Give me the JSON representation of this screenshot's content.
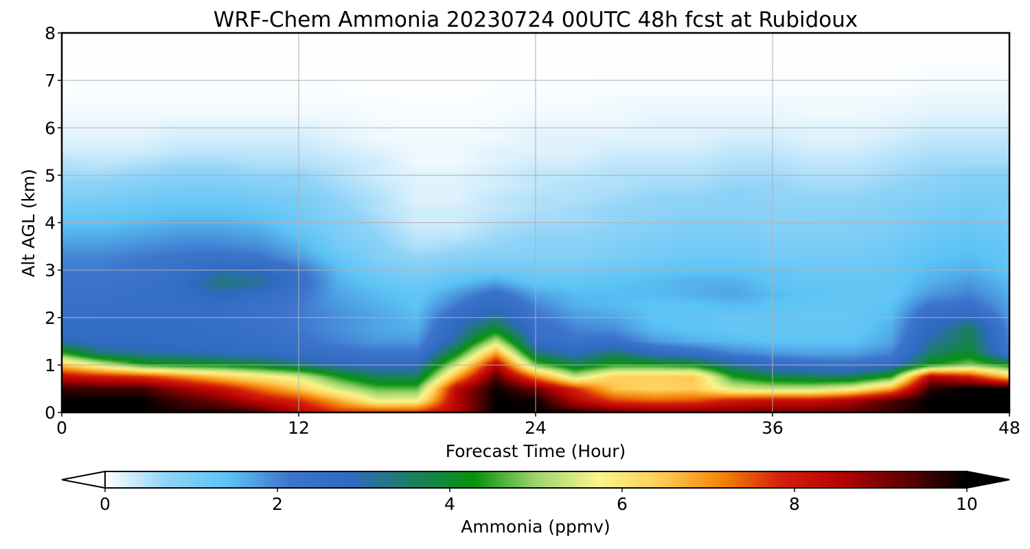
{
  "chart_data": {
    "type": "heatmap",
    "title": "WRF-Chem Ammonia  20230724 00UTC 48h fcst at Rubidoux",
    "xlabel": "Forecast Time (Hour)",
    "ylabel": "Alt AGL (km)",
    "xlim": [
      0,
      48
    ],
    "ylim": [
      0,
      8
    ],
    "x_ticks": [
      0,
      12,
      24,
      36,
      48
    ],
    "y_ticks": [
      0,
      1,
      2,
      3,
      4,
      5,
      6,
      7,
      8
    ],
    "grid": true,
    "colorbar": {
      "label": "Ammonia  (ppmv)",
      "range": [
        0,
        10
      ],
      "ticks": [
        0,
        2,
        4,
        6,
        8,
        10
      ],
      "extend": "both",
      "colors": [
        "#ffffff",
        "#8fd3f7",
        "#5bc3f5",
        "#3d74cc",
        "#2f6ac0",
        "#1b7f60",
        "#06930c",
        "#9fd46e",
        "#f9f58c",
        "#ffce57",
        "#f58508",
        "#d41e0a",
        "#b40202",
        "#5e0101",
        "#000000"
      ]
    },
    "grid_x": [
      0,
      2,
      4,
      6,
      8,
      10,
      12,
      14,
      16,
      18,
      20,
      22,
      24,
      26,
      28,
      30,
      32,
      34,
      36,
      38,
      40,
      42,
      44,
      46,
      48
    ],
    "grid_y": [
      0,
      0.25,
      0.5,
      0.75,
      1,
      1.25,
      1.5,
      1.75,
      2,
      2.25,
      2.5,
      2.75,
      3,
      3.25,
      3.5,
      3.75,
      4,
      4.25,
      4.5,
      4.75,
      5,
      5.25,
      5.5,
      5.75,
      6,
      6.25,
      6.5,
      6.75,
      7,
      7.25,
      7.5,
      7.75,
      8
    ],
    "values": [
      [
        10,
        10,
        10,
        9.8,
        9.8,
        9.5,
        8.5,
        7.8,
        7.8,
        7.8,
        8.5,
        10,
        10,
        9.7,
        9.3,
        9.1,
        9.1,
        9.1,
        9.2,
        9.2,
        9.3,
        9.6,
        10,
        10,
        10
      ],
      [
        10,
        10,
        10,
        9.5,
        9.1,
        8.3,
        7.8,
        6.8,
        5.6,
        5.7,
        8.5,
        10,
        9.9,
        8.5,
        7.6,
        7.4,
        7.5,
        8,
        8.2,
        8.2,
        8.6,
        9.4,
        10,
        10,
        10
      ],
      [
        9.6,
        9.5,
        9.5,
        8.8,
        8.2,
        7.3,
        6.5,
        5.4,
        4.7,
        4.7,
        8.4,
        9.9,
        9.2,
        7.8,
        6.5,
        6.3,
        6.4,
        5.5,
        5.3,
        5.3,
        5.7,
        6.8,
        9.7,
        10,
        10
      ],
      [
        8.3,
        8,
        7.8,
        7.2,
        6.5,
        6,
        5.5,
        4.4,
        3.6,
        3.6,
        6.8,
        9.4,
        7.2,
        5.3,
        6.4,
        6.4,
        6.5,
        4.4,
        3.8,
        3.6,
        3.6,
        4.4,
        8.6,
        8,
        6.5
      ],
      [
        6.5,
        5.5,
        4.5,
        4.2,
        4.2,
        3.9,
        3.4,
        2.9,
        2.7,
        2.8,
        5.4,
        8.5,
        4.8,
        3.8,
        4.4,
        4.4,
        4.2,
        3.2,
        2.6,
        2.4,
        2.3,
        2.6,
        4.3,
        4.9,
        4.2
      ],
      [
        4.5,
        3.3,
        3.1,
        3,
        2.8,
        2.7,
        2.5,
        2.3,
        2.2,
        2.2,
        4.1,
        6.9,
        3.4,
        2.8,
        3.5,
        2.7,
        2.4,
        2,
        1.8,
        1.7,
        1.7,
        2,
        3.5,
        4,
        2.2
      ],
      [
        2.9,
        2.7,
        2.7,
        2.6,
        2.6,
        2.5,
        2.2,
        2,
        1.8,
        1.8,
        3.2,
        5.3,
        2.6,
        2.2,
        2.3,
        1.8,
        1.6,
        1.5,
        1.4,
        1.4,
        1.4,
        1.7,
        3.1,
        3.7,
        2
      ],
      [
        2.6,
        2.6,
        2.6,
        2.6,
        2.5,
        2.3,
        2.1,
        1.9,
        1.7,
        1.6,
        2.9,
        4,
        2.4,
        2,
        1.9,
        1.5,
        1.4,
        1.3,
        1.3,
        1.3,
        1.3,
        1.6,
        2.8,
        3.6,
        1.9
      ],
      [
        2.5,
        2.5,
        2.5,
        2.5,
        2.5,
        2.3,
        2.1,
        1.9,
        1.7,
        1.5,
        2.6,
        3.2,
        2.2,
        1.8,
        1.7,
        1.4,
        1.4,
        1.3,
        1.3,
        1.3,
        1.3,
        1.5,
        2.6,
        2.9,
        1.8
      ],
      [
        2.4,
        2.4,
        2.5,
        2.5,
        2.6,
        2.3,
        2.1,
        1.8,
        1.6,
        1.4,
        2.1,
        2.8,
        2,
        1.6,
        1.5,
        1.4,
        1.4,
        1.5,
        1.4,
        1.3,
        1.3,
        1.4,
        2.2,
        2.3,
        1.7
      ],
      [
        2.3,
        2.3,
        2.4,
        2.6,
        2.9,
        2.6,
        2.2,
        1.7,
        1.5,
        1.3,
        1.8,
        2.3,
        1.7,
        1.5,
        1.5,
        1.5,
        1.6,
        1.7,
        1.5,
        1.4,
        1.3,
        1.3,
        1.8,
        2,
        1.6
      ],
      [
        2.2,
        2.2,
        2.3,
        2.5,
        3.4,
        3.2,
        2.4,
        1.6,
        1.3,
        1.1,
        1.4,
        1.7,
        1.3,
        1.3,
        1.4,
        1.5,
        1.6,
        1.6,
        1.4,
        1.3,
        1.3,
        1.3,
        1.6,
        1.8,
        1.5
      ],
      [
        2.1,
        2.1,
        2.2,
        2.4,
        2.9,
        2.8,
        2.2,
        1.5,
        1.1,
        0.9,
        1.1,
        1.2,
        1.1,
        1.1,
        1.2,
        1.3,
        1.4,
        1.4,
        1.3,
        1.2,
        1.2,
        1.3,
        1.5,
        1.6,
        1.4
      ],
      [
        2,
        2,
        2.1,
        2.2,
        2.3,
        2.2,
        1.8,
        1.3,
        0.9,
        0.7,
        0.8,
        0.9,
        0.9,
        0.9,
        1,
        1.1,
        1.2,
        1.2,
        1.1,
        1.1,
        1.1,
        1.2,
        1.4,
        1.5,
        1.3
      ],
      [
        1.8,
        1.8,
        1.9,
        2,
        2,
        1.9,
        1.6,
        1.1,
        0.8,
        0.5,
        0.6,
        0.7,
        0.8,
        0.8,
        0.9,
        1,
        1.1,
        1.1,
        1,
        1,
        1,
        1.1,
        1.3,
        1.4,
        1.3
      ],
      [
        1.6,
        1.6,
        1.7,
        1.8,
        1.8,
        1.7,
        1.4,
        1,
        0.7,
        0.4,
        0.4,
        0.6,
        0.7,
        0.7,
        0.8,
        0.9,
        1,
        1,
        0.9,
        0.9,
        0.9,
        1,
        1.2,
        1.3,
        1.2
      ],
      [
        1.4,
        1.4,
        1.5,
        1.6,
        1.6,
        1.5,
        1.2,
        0.9,
        0.6,
        0.3,
        0.3,
        0.5,
        0.6,
        0.6,
        0.7,
        0.8,
        0.9,
        0.9,
        0.8,
        0.8,
        0.9,
        0.9,
        1.1,
        1.2,
        1.1
      ],
      [
        1.2,
        1.2,
        1.3,
        1.4,
        1.4,
        1.3,
        1.1,
        0.8,
        0.5,
        0.3,
        0.3,
        0.4,
        0.5,
        0.6,
        0.7,
        0.7,
        0.8,
        0.8,
        0.8,
        0.8,
        0.8,
        0.9,
        1,
        1.1,
        1
      ],
      [
        1,
        1,
        1.1,
        1.2,
        1.2,
        1.1,
        1,
        0.7,
        0.5,
        0.2,
        0.2,
        0.4,
        0.5,
        0.5,
        0.6,
        0.7,
        0.7,
        0.8,
        0.7,
        0.7,
        0.7,
        0.8,
        0.9,
        1,
        1
      ],
      [
        0.8,
        0.8,
        0.9,
        1,
        1,
        0.9,
        0.8,
        0.6,
        0.4,
        0.2,
        0.2,
        0.3,
        0.4,
        0.5,
        0.5,
        0.6,
        0.6,
        0.7,
        0.7,
        0.6,
        0.6,
        0.7,
        0.8,
        0.9,
        0.9
      ],
      [
        0.6,
        0.6,
        0.7,
        0.8,
        0.8,
        0.7,
        0.7,
        0.5,
        0.3,
        0.2,
        0.2,
        0.3,
        0.4,
        0.4,
        0.5,
        0.5,
        0.5,
        0.6,
        0.6,
        0.5,
        0.5,
        0.6,
        0.7,
        0.8,
        0.8
      ],
      [
        0.5,
        0.4,
        0.5,
        0.6,
        0.6,
        0.5,
        0.5,
        0.4,
        0.3,
        0.1,
        0.1,
        0.2,
        0.3,
        0.3,
        0.4,
        0.4,
        0.4,
        0.5,
        0.5,
        0.4,
        0.4,
        0.5,
        0.6,
        0.6,
        0.6
      ],
      [
        0.3,
        0.3,
        0.3,
        0.4,
        0.4,
        0.4,
        0.4,
        0.3,
        0.2,
        0.1,
        0.1,
        0.2,
        0.2,
        0.2,
        0.3,
        0.3,
        0.3,
        0.4,
        0.4,
        0.3,
        0.3,
        0.4,
        0.5,
        0.5,
        0.5
      ],
      [
        0.2,
        0.2,
        0.2,
        0.3,
        0.3,
        0.3,
        0.3,
        0.2,
        0.1,
        0.1,
        0.1,
        0.1,
        0.2,
        0.2,
        0.2,
        0.2,
        0.2,
        0.3,
        0.3,
        0.2,
        0.2,
        0.3,
        0.4,
        0.4,
        0.4
      ],
      [
        0.15,
        0.15,
        0.15,
        0.2,
        0.2,
        0.2,
        0.2,
        0.15,
        0.1,
        0.05,
        0.05,
        0.1,
        0.15,
        0.15,
        0.15,
        0.2,
        0.2,
        0.2,
        0.2,
        0.2,
        0.2,
        0.2,
        0.3,
        0.3,
        0.3
      ],
      [
        0.1,
        0.1,
        0.1,
        0.1,
        0.1,
        0.1,
        0.1,
        0.1,
        0.05,
        0.05,
        0.05,
        0.05,
        0.1,
        0.1,
        0.1,
        0.15,
        0.15,
        0.15,
        0.15,
        0.1,
        0.1,
        0.15,
        0.2,
        0.2,
        0.2
      ],
      [
        0.05,
        0.05,
        0.05,
        0.05,
        0.05,
        0.05,
        0.05,
        0.05,
        0.05,
        0.02,
        0.02,
        0.05,
        0.05,
        0.05,
        0.1,
        0.1,
        0.1,
        0.1,
        0.1,
        0.1,
        0.1,
        0.1,
        0.15,
        0.15,
        0.15
      ],
      [
        0.03,
        0.03,
        0.03,
        0.03,
        0.03,
        0.03,
        0.03,
        0.03,
        0.02,
        0.02,
        0.02,
        0.03,
        0.03,
        0.03,
        0.05,
        0.05,
        0.05,
        0.05,
        0.05,
        0.05,
        0.05,
        0.05,
        0.1,
        0.1,
        0.1
      ],
      [
        0.02,
        0.02,
        0.02,
        0.02,
        0.02,
        0.02,
        0.02,
        0.02,
        0.01,
        0.01,
        0.01,
        0.02,
        0.02,
        0.02,
        0.03,
        0.03,
        0.03,
        0.03,
        0.03,
        0.03,
        0.03,
        0.03,
        0.05,
        0.05,
        0.05
      ],
      [
        0.01,
        0.01,
        0.01,
        0.01,
        0.01,
        0.01,
        0.01,
        0.01,
        0.01,
        0.01,
        0.01,
        0.01,
        0.01,
        0.01,
        0.02,
        0.02,
        0.02,
        0.02,
        0.02,
        0.02,
        0.02,
        0.02,
        0.03,
        0.03,
        0.03
      ],
      [
        0.01,
        0.01,
        0.01,
        0.01,
        0.01,
        0.01,
        0.01,
        0.01,
        0.01,
        0.01,
        0.01,
        0.01,
        0.01,
        0.01,
        0.01,
        0.01,
        0.01,
        0.01,
        0.01,
        0.01,
        0.01,
        0.01,
        0.02,
        0.02,
        0.02
      ],
      [
        0.01,
        0.01,
        0.01,
        0.01,
        0.01,
        0.01,
        0.01,
        0.01,
        0.01,
        0.01,
        0.01,
        0.01,
        0.01,
        0.01,
        0.01,
        0.01,
        0.01,
        0.01,
        0.01,
        0.01,
        0.01,
        0.01,
        0.01,
        0.01,
        0.01
      ],
      [
        0.01,
        0.01,
        0.01,
        0.01,
        0.01,
        0.01,
        0.01,
        0.01,
        0.01,
        0.01,
        0.01,
        0.01,
        0.01,
        0.01,
        0.01,
        0.01,
        0.01,
        0.01,
        0.01,
        0.01,
        0.01,
        0.01,
        0.01,
        0.01,
        0.01
      ]
    ]
  }
}
